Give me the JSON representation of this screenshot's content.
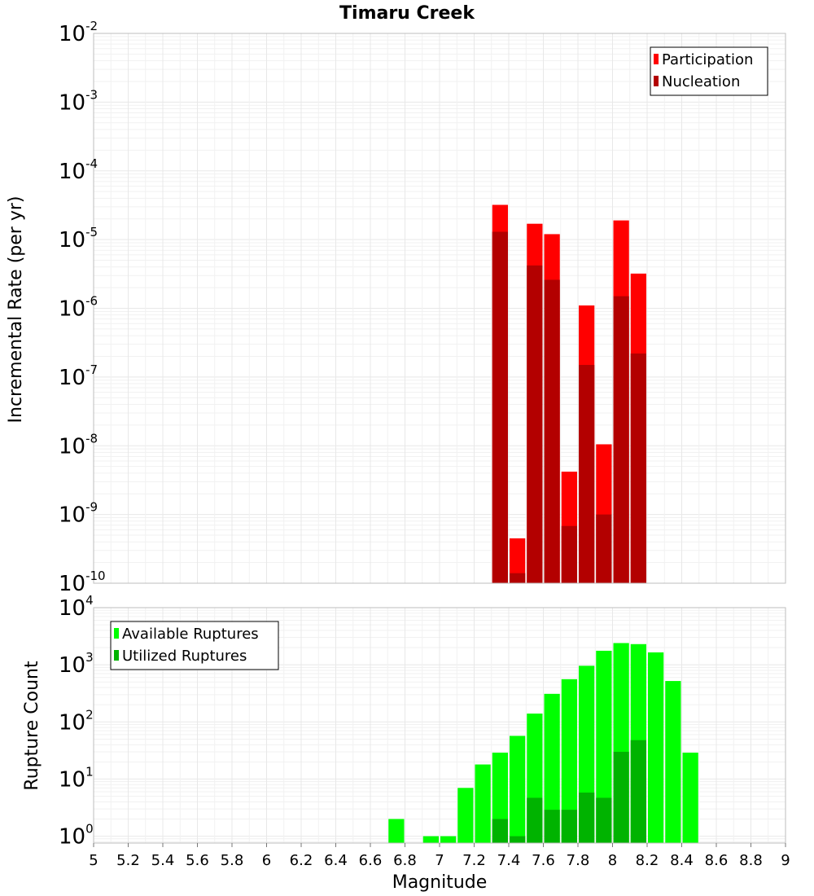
{
  "chart_data": [
    {
      "type": "bar",
      "title": "Timaru Creek",
      "ylabel": "Incremental Rate (per yr)",
      "xlabel": "",
      "yscale": "log",
      "ylim_exp": [
        -10,
        -2
      ],
      "xlim": [
        5,
        9
      ],
      "bar_width": 0.1,
      "legend_position": "top-right",
      "ytick_exponents": [
        -10,
        -9,
        -8,
        -7,
        -6,
        -5,
        -4,
        -3,
        -2
      ],
      "series": [
        {
          "name": "Participation",
          "color": "#ff0000",
          "x": [
            7.35,
            7.45,
            7.55,
            7.65,
            7.75,
            7.85,
            7.95,
            8.05,
            8.15
          ],
          "values": [
            3.2e-05,
            4.5e-10,
            1.7e-05,
            1.2e-05,
            4.2e-09,
            1.1e-06,
            1.05e-08,
            1.9e-05,
            3.2e-06
          ]
        },
        {
          "name": "Nucleation",
          "color": "#b30000",
          "x": [
            7.35,
            7.45,
            7.55,
            7.65,
            7.75,
            7.85,
            7.95,
            8.05,
            8.15
          ],
          "values": [
            1.3e-05,
            1.4e-10,
            4.2e-06,
            2.6e-06,
            6.8e-10,
            1.5e-07,
            1e-09,
            1.5e-06,
            2.2e-07
          ]
        }
      ]
    },
    {
      "type": "bar",
      "title": "",
      "ylabel": "Rupture Count",
      "xlabel": "Magnitude",
      "yscale": "log",
      "ylim_exp": [
        -0.12,
        4
      ],
      "xlim": [
        5,
        9
      ],
      "bar_width": 0.1,
      "legend_position": "top-left",
      "ytick_exponents": [
        0,
        1,
        2,
        3,
        4
      ],
      "xticks": [
        "5",
        "5.2",
        "5.4",
        "5.6",
        "5.8",
        "6",
        "6.2",
        "6.4",
        "6.6",
        "6.8",
        "7",
        "7.2",
        "7.4",
        "7.6",
        "7.8",
        "8",
        "8.2",
        "8.4",
        "8.6",
        "8.8",
        "9"
      ],
      "series": [
        {
          "name": "Available Ruptures",
          "color": "#00ff00",
          "x": [
            6.75,
            6.95,
            7.05,
            7.15,
            7.25,
            7.35,
            7.45,
            7.55,
            7.65,
            7.75,
            7.85,
            7.95,
            8.05,
            8.15,
            8.25,
            8.35,
            8.45
          ],
          "values": [
            2,
            1,
            1,
            7,
            18,
            29,
            57,
            140,
            310,
            560,
            960,
            1760,
            2400,
            2300,
            1650,
            520,
            29
          ]
        },
        {
          "name": "Utilized Ruptures",
          "color": "#00b300",
          "x": [
            7.35,
            7.45,
            7.55,
            7.65,
            7.75,
            7.85,
            7.95,
            8.05,
            8.15
          ],
          "values": [
            2,
            1,
            4.7,
            2.9,
            2.9,
            5.8,
            4.7,
            30,
            48
          ]
        }
      ]
    }
  ]
}
